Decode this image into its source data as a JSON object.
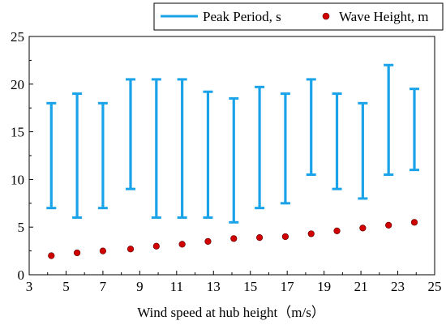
{
  "chart_data": {
    "type": "errorbar-scatter",
    "title": "",
    "xlabel": "Wind speed at hub height（m/s）",
    "ylabel": "",
    "xlim": [
      3,
      25
    ],
    "ylim": [
      0,
      25
    ],
    "xticks": [
      3,
      5,
      7,
      9,
      11,
      13,
      15,
      17,
      19,
      21,
      23,
      25
    ],
    "yticks": [
      0,
      5,
      10,
      15,
      20,
      25
    ],
    "grid": false,
    "legend_position": "top-right",
    "x": [
      4.2,
      5.6,
      7.0,
      8.5,
      9.9,
      11.3,
      12.7,
      14.1,
      15.5,
      16.9,
      18.3,
      19.7,
      21.1,
      22.5,
      23.9
    ],
    "series": [
      {
        "name": "Peak Period, s",
        "kind": "range",
        "color": "#1aa3e8",
        "low": [
          7.0,
          6.0,
          7.0,
          9.0,
          6.0,
          6.0,
          6.0,
          5.5,
          7.0,
          7.5,
          10.5,
          9.0,
          8.0,
          10.5,
          11.0
        ],
        "high": [
          18.0,
          19.0,
          18.0,
          20.5,
          20.5,
          20.5,
          19.2,
          18.5,
          19.7,
          19.0,
          20.5,
          19.0,
          18.0,
          22.0,
          19.5
        ]
      },
      {
        "name": "Wave Height, m",
        "kind": "points",
        "color": "#d10000",
        "values": [
          2.0,
          2.3,
          2.5,
          2.7,
          3.0,
          3.2,
          3.5,
          3.8,
          3.9,
          4.0,
          4.3,
          4.6,
          4.9,
          5.2,
          5.5
        ]
      }
    ]
  }
}
